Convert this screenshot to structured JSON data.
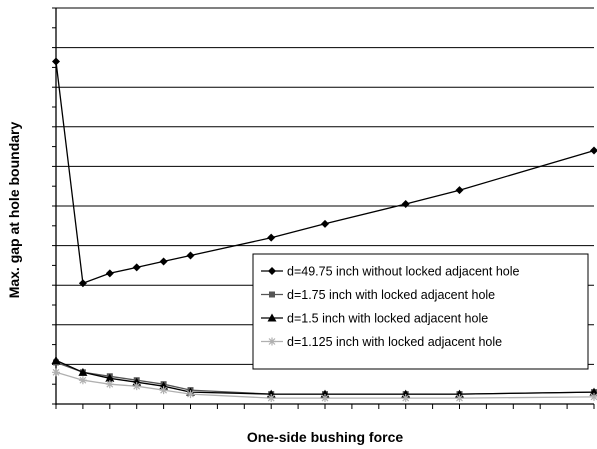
{
  "chart_data": {
    "type": "line",
    "title": "",
    "xlabel": "One-side bushing force",
    "ylabel": "Max. gap at hole boundary",
    "xlim": [
      0,
      100
    ],
    "ylim": [
      0,
      10
    ],
    "grid": {
      "horizontal": true,
      "vertical": false
    },
    "legend_position": "lower-right",
    "series": [
      {
        "name": "d=49.75 inch without locked adjacent hole",
        "marker": "diamond",
        "color": "#000000",
        "x": [
          0,
          5,
          10,
          15,
          20,
          25,
          40,
          50,
          65,
          75,
          100
        ],
        "y": [
          8.65,
          3.05,
          3.3,
          3.45,
          3.6,
          3.75,
          4.2,
          4.55,
          5.05,
          5.4,
          6.4
        ]
      },
      {
        "name": "d=1.75 inch with locked adjacent hole",
        "marker": "square",
        "color": "#555555",
        "x": [
          0,
          5,
          10,
          15,
          20,
          25,
          40,
          50,
          65,
          75,
          100
        ],
        "y": [
          1.05,
          0.8,
          0.7,
          0.6,
          0.5,
          0.35,
          0.25,
          0.25,
          0.25,
          0.25,
          0.3
        ]
      },
      {
        "name": "d=1.5 inch with locked adjacent hole",
        "marker": "triangle",
        "color": "#000000",
        "x": [
          0,
          5,
          10,
          15,
          20,
          25,
          40,
          50,
          65,
          75,
          100
        ],
        "y": [
          1.1,
          0.8,
          0.65,
          0.55,
          0.45,
          0.3,
          0.25,
          0.25,
          0.25,
          0.25,
          0.3
        ]
      },
      {
        "name": "d=1.125 inch with locked adjacent hole",
        "marker": "star",
        "color": "#b0b0b0",
        "x": [
          0,
          5,
          10,
          15,
          20,
          25,
          40,
          50,
          65,
          75,
          100
        ],
        "y": [
          0.8,
          0.6,
          0.5,
          0.45,
          0.35,
          0.25,
          0.15,
          0.15,
          0.15,
          0.15,
          0.18
        ]
      }
    ]
  }
}
